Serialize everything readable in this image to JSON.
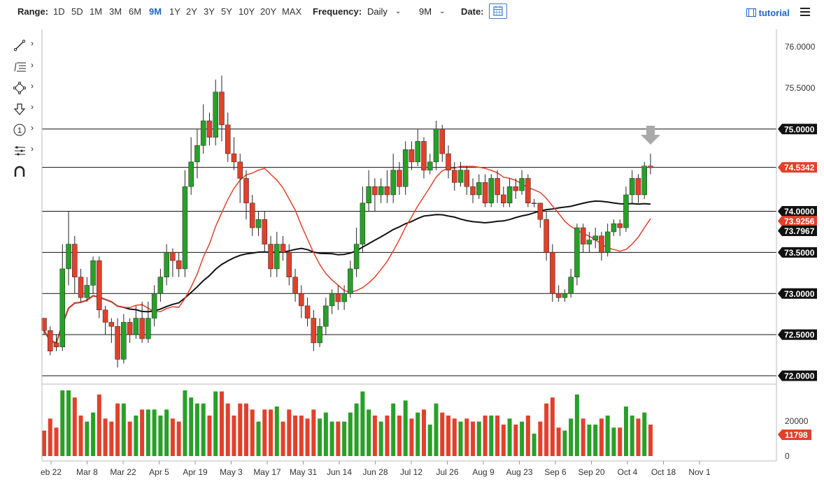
{
  "toolbar": {
    "range_label": "Range:",
    "ranges": [
      "1D",
      "5D",
      "1M",
      "3M",
      "6M",
      "9M",
      "1Y",
      "2Y",
      "3Y",
      "5Y",
      "10Y",
      "20Y",
      "MAX"
    ],
    "active_range": "9M",
    "frequency_label": "Frequency:",
    "frequency_value": "Daily",
    "period_value": "9M",
    "date_label": "Date:",
    "tutorial_label": "tutorial"
  },
  "drawing_tools": [
    "line-tool-icon",
    "fib-levels-icon",
    "shapes-icon",
    "arrow-down-icon",
    "numbered-marker-icon",
    "measure-icon",
    "magnet-icon"
  ],
  "chart_data": {
    "type": "candlestick",
    "x_ticks": [
      "eb 22",
      "Mar 8",
      "Mar 22",
      "Apr 5",
      "Apr 19",
      "May 3",
      "May 17",
      "May 31",
      "Jun 14",
      "Jun 28",
      "Jul 12",
      "Jul 26",
      "Aug 9",
      "Aug 23",
      "Sep 6",
      "Sep 20",
      "Oct 4",
      "Oct 18",
      "Nov 1"
    ],
    "y_ticks": [
      "76.0000",
      "75.5000",
      "75.0000",
      "74.5000",
      "74.0000",
      "73.5000",
      "73.0000",
      "72.5000",
      "72.0000"
    ],
    "ylim": [
      72.0,
      76.0
    ],
    "horizontal_levels": [
      72.0,
      72.5,
      73.0,
      73.5,
      74.0,
      74.5342,
      75.0
    ],
    "price_labels": [
      {
        "value": "75.0000",
        "kind": "level"
      },
      {
        "value": "74.5342",
        "kind": "last"
      },
      {
        "value": "74.0000",
        "kind": "level"
      },
      {
        "value": "73.9256",
        "kind": "sma50"
      },
      {
        "value": "73.7967",
        "kind": "sma200"
      },
      {
        "value": "73.5000",
        "kind": "level"
      },
      {
        "value": "73.0000",
        "kind": "level"
      },
      {
        "value": "72.5000",
        "kind": "level"
      },
      {
        "value": "72.0000",
        "kind": "level"
      }
    ],
    "volume": {
      "ticks": [
        "20000",
        "0"
      ],
      "last_value": "11798",
      "ylim": [
        0,
        25000
      ]
    },
    "colors": {
      "up": "#28a028",
      "down": "#e2402b",
      "sma_fast": "#e2402b",
      "sma_slow": "#111111",
      "label_red": "#e2402b",
      "label_dark": "#111111",
      "marker": "#aaaaaa"
    },
    "candles": [
      [
        72.7,
        72.55,
        72.65,
        72.5,
        "down"
      ],
      [
        72.55,
        72.3,
        72.6,
        72.25,
        "down"
      ],
      [
        72.4,
        72.35,
        72.5,
        72.3,
        "down"
      ],
      [
        72.35,
        73.3,
        73.6,
        72.3,
        "up"
      ],
      [
        73.3,
        73.6,
        74.0,
        73.1,
        "up"
      ],
      [
        73.6,
        73.2,
        73.7,
        73.0,
        "down"
      ],
      [
        73.2,
        72.95,
        73.3,
        72.9,
        "down"
      ],
      [
        72.95,
        73.1,
        73.2,
        72.9,
        "up"
      ],
      [
        73.1,
        73.4,
        73.45,
        73.0,
        "up"
      ],
      [
        73.4,
        72.8,
        73.45,
        72.7,
        "down"
      ],
      [
        72.8,
        72.65,
        72.85,
        72.5,
        "down"
      ],
      [
        72.65,
        72.6,
        72.7,
        72.4,
        "down"
      ],
      [
        72.6,
        72.2,
        72.7,
        72.1,
        "down"
      ],
      [
        72.2,
        72.65,
        72.75,
        72.15,
        "up"
      ],
      [
        72.65,
        72.5,
        72.7,
        72.4,
        "down"
      ],
      [
        72.5,
        72.7,
        72.85,
        72.45,
        "up"
      ],
      [
        72.7,
        72.45,
        72.9,
        72.4,
        "down"
      ],
      [
        72.45,
        72.7,
        72.9,
        72.4,
        "up"
      ],
      [
        72.7,
        73.0,
        73.1,
        72.6,
        "up"
      ],
      [
        73.0,
        73.2,
        73.3,
        72.9,
        "up"
      ],
      [
        73.2,
        73.5,
        73.6,
        73.1,
        "up"
      ],
      [
        73.5,
        73.4,
        73.55,
        73.2,
        "down"
      ],
      [
        73.4,
        73.3,
        73.5,
        73.2,
        "down"
      ],
      [
        73.3,
        74.3,
        74.5,
        73.2,
        "up"
      ],
      [
        74.3,
        74.6,
        74.9,
        74.2,
        "up"
      ],
      [
        74.6,
        74.8,
        75.0,
        74.4,
        "up"
      ],
      [
        74.8,
        75.1,
        75.3,
        74.7,
        "up"
      ],
      [
        75.1,
        74.9,
        75.2,
        74.8,
        "down"
      ],
      [
        74.9,
        75.45,
        75.6,
        74.8,
        "up"
      ],
      [
        75.45,
        75.05,
        75.65,
        74.85,
        "down"
      ],
      [
        75.05,
        74.7,
        75.2,
        74.6,
        "down"
      ],
      [
        74.7,
        74.6,
        74.9,
        74.5,
        "down"
      ],
      [
        74.6,
        74.4,
        74.7,
        74.1,
        "down"
      ],
      [
        74.4,
        74.1,
        74.5,
        73.9,
        "down"
      ],
      [
        74.1,
        73.8,
        74.2,
        73.7,
        "down"
      ],
      [
        73.8,
        73.9,
        74.0,
        73.7,
        "up"
      ],
      [
        73.9,
        73.6,
        74.0,
        73.5,
        "down"
      ],
      [
        73.6,
        73.3,
        73.7,
        73.2,
        "down"
      ],
      [
        73.3,
        73.6,
        73.75,
        73.2,
        "up"
      ],
      [
        73.6,
        73.5,
        73.7,
        73.4,
        "down"
      ],
      [
        73.5,
        73.2,
        73.6,
        73.1,
        "down"
      ],
      [
        73.2,
        73.0,
        73.3,
        72.9,
        "down"
      ],
      [
        73.0,
        72.85,
        73.1,
        72.7,
        "down"
      ],
      [
        72.85,
        72.7,
        72.95,
        72.6,
        "down"
      ],
      [
        72.7,
        72.4,
        72.8,
        72.3,
        "down"
      ],
      [
        72.4,
        72.6,
        72.7,
        72.35,
        "up"
      ],
      [
        72.6,
        72.85,
        72.95,
        72.5,
        "up"
      ],
      [
        72.85,
        73.0,
        73.05,
        72.75,
        "up"
      ],
      [
        73.0,
        72.9,
        73.1,
        72.8,
        "down"
      ],
      [
        72.9,
        73.0,
        73.1,
        72.8,
        "up"
      ],
      [
        73.0,
        73.3,
        73.4,
        72.95,
        "up"
      ],
      [
        73.3,
        73.6,
        73.8,
        73.2,
        "up"
      ],
      [
        73.6,
        74.1,
        74.3,
        73.5,
        "up"
      ],
      [
        74.1,
        74.3,
        74.5,
        74.0,
        "up"
      ],
      [
        74.3,
        74.2,
        74.4,
        74.0,
        "down"
      ],
      [
        74.2,
        74.3,
        74.4,
        74.1,
        "up"
      ],
      [
        74.3,
        74.2,
        74.5,
        74.1,
        "down"
      ],
      [
        74.2,
        74.5,
        74.7,
        74.1,
        "up"
      ],
      [
        74.5,
        74.3,
        74.6,
        74.2,
        "down"
      ],
      [
        74.3,
        74.75,
        74.85,
        74.2,
        "up"
      ],
      [
        74.75,
        74.6,
        74.85,
        74.5,
        "down"
      ],
      [
        74.6,
        74.85,
        75.0,
        74.55,
        "up"
      ],
      [
        74.85,
        74.5,
        74.9,
        74.4,
        "down"
      ],
      [
        74.5,
        74.6,
        74.7,
        74.45,
        "up"
      ],
      [
        74.6,
        75.0,
        75.1,
        74.5,
        "up"
      ],
      [
        75.0,
        74.7,
        75.05,
        74.6,
        "down"
      ],
      [
        74.7,
        74.5,
        74.8,
        74.4,
        "down"
      ],
      [
        74.5,
        74.35,
        74.6,
        74.25,
        "down"
      ],
      [
        74.35,
        74.5,
        74.6,
        74.3,
        "up"
      ],
      [
        74.5,
        74.3,
        74.55,
        74.2,
        "down"
      ],
      [
        74.3,
        74.2,
        74.4,
        74.1,
        "down"
      ],
      [
        74.2,
        74.35,
        74.45,
        74.15,
        "up"
      ],
      [
        74.35,
        74.1,
        74.45,
        74.05,
        "down"
      ],
      [
        74.1,
        74.4,
        74.45,
        74.05,
        "up"
      ],
      [
        74.4,
        74.2,
        74.5,
        74.1,
        "down"
      ],
      [
        74.2,
        74.1,
        74.3,
        74.05,
        "down"
      ],
      [
        74.1,
        74.3,
        74.4,
        74.05,
        "up"
      ],
      [
        74.3,
        74.25,
        74.4,
        74.15,
        "down"
      ],
      [
        74.25,
        74.4,
        74.5,
        74.2,
        "up"
      ],
      [
        74.4,
        74.1,
        74.45,
        74.05,
        "down"
      ],
      [
        74.1,
        74.1,
        74.15,
        74.05,
        "up"
      ],
      [
        74.1,
        73.9,
        74.1,
        73.8,
        "down"
      ],
      [
        73.9,
        73.5,
        74.0,
        73.4,
        "down"
      ],
      [
        73.5,
        73.0,
        73.6,
        72.9,
        "down"
      ],
      [
        73.0,
        72.95,
        73.1,
        72.9,
        "down"
      ],
      [
        72.95,
        73.0,
        73.05,
        72.9,
        "up"
      ],
      [
        73.0,
        73.2,
        73.3,
        72.95,
        "up"
      ],
      [
        73.2,
        73.8,
        73.85,
        73.1,
        "up"
      ],
      [
        73.8,
        73.6,
        73.85,
        73.5,
        "down"
      ],
      [
        73.6,
        73.65,
        73.75,
        73.5,
        "up"
      ],
      [
        73.65,
        73.7,
        73.8,
        73.55,
        "up"
      ],
      [
        73.7,
        73.5,
        73.75,
        73.4,
        "down"
      ],
      [
        73.5,
        73.75,
        73.85,
        73.45,
        "up"
      ],
      [
        73.75,
        73.85,
        73.9,
        73.7,
        "up"
      ],
      [
        73.85,
        73.8,
        73.9,
        73.7,
        "down"
      ],
      [
        73.8,
        74.2,
        74.3,
        73.75,
        "up"
      ],
      [
        74.2,
        74.4,
        74.5,
        74.1,
        "up"
      ],
      [
        74.4,
        74.2,
        74.45,
        74.1,
        "down"
      ],
      [
        74.2,
        74.55,
        74.6,
        74.15,
        "up"
      ],
      [
        74.55,
        74.53,
        74.7,
        74.45,
        "down"
      ]
    ]
  }
}
